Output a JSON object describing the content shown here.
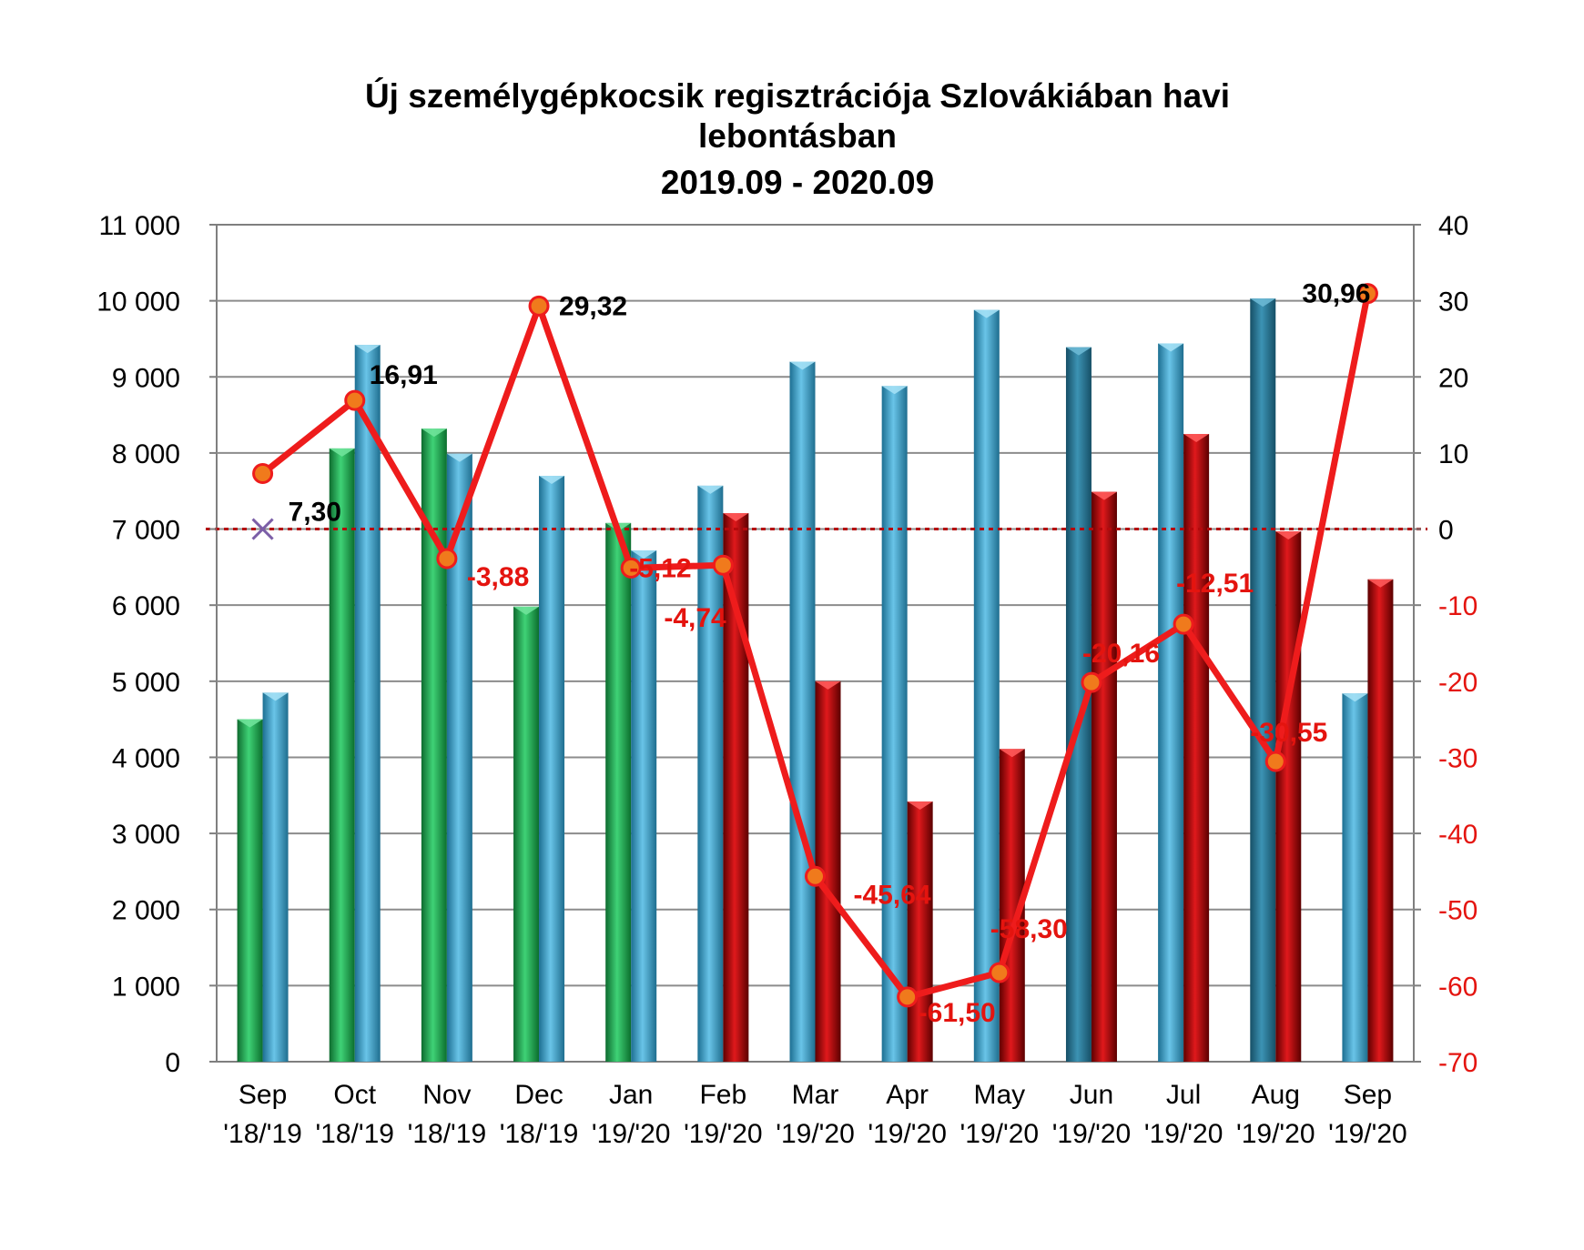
{
  "chart_data": {
    "type": "bar+line",
    "title": [
      "Új személygépkocsik regisztrációja Szlovákiában havi",
      "lebontásban",
      "2019.09 - 2020.09"
    ],
    "categories": [
      {
        "month": "Sep",
        "years": "'18/'19"
      },
      {
        "month": "Oct",
        "years": "'18/'19"
      },
      {
        "month": "Nov",
        "years": "'18/'19"
      },
      {
        "month": "Dec",
        "years": "'18/'19"
      },
      {
        "month": "Jan",
        "years": "'19/'20"
      },
      {
        "month": "Feb",
        "years": "'19/'20"
      },
      {
        "month": "Mar",
        "years": "'19/'20"
      },
      {
        "month": "Apr",
        "years": "'19/'20"
      },
      {
        "month": "May",
        "years": "'19/'20"
      },
      {
        "month": "Jun",
        "years": "'19/'20"
      },
      {
        "month": "Jul",
        "years": "'19/'20"
      },
      {
        "month": "Aug",
        "years": "'19/'20"
      },
      {
        "month": "Sep",
        "years": "'19/'20"
      }
    ],
    "bars": [
      {
        "prev": 4500,
        "curr": 4850,
        "prev_color": "green",
        "curr_color": "blue"
      },
      {
        "prev": 8060,
        "curr": 9420,
        "prev_color": "green",
        "curr_color": "blue"
      },
      {
        "prev": 8320,
        "curr": 7990,
        "prev_color": "green",
        "curr_color": "blue"
      },
      {
        "prev": 5980,
        "curr": 7700,
        "prev_color": "green",
        "curr_color": "blue"
      },
      {
        "prev": 7080,
        "curr": 6720,
        "prev_color": "green",
        "curr_color": "blue"
      },
      {
        "prev": 7570,
        "curr": 7210,
        "prev_color": "blue",
        "curr_color": "red"
      },
      {
        "prev": 9200,
        "curr": 5000,
        "prev_color": "blue",
        "curr_color": "red"
      },
      {
        "prev": 8880,
        "curr": 3420,
        "prev_color": "blue",
        "curr_color": "red"
      },
      {
        "prev": 9880,
        "curr": 4110,
        "prev_color": "blue",
        "curr_color": "red"
      },
      {
        "prev": 9390,
        "curr": 7490,
        "prev_color": "darkblue",
        "curr_color": "red"
      },
      {
        "prev": 9440,
        "curr": 8250,
        "prev_color": "blue",
        "curr_color": "red"
      },
      {
        "prev": 10030,
        "curr": 6970,
        "prev_color": "darkblue",
        "curr_color": "red"
      },
      {
        "prev": 4840,
        "curr": 6340,
        "prev_color": "blue",
        "curr_color": "red"
      }
    ],
    "change_pct": [
      7.3,
      16.91,
      -3.88,
      29.32,
      -5.12,
      -4.74,
      -45.64,
      -61.5,
      -58.3,
      -20.16,
      -12.51,
      -30.55,
      30.96
    ],
    "change_labels": [
      "7,30",
      "16,91",
      "-3,88",
      "29,32",
      "-5,12",
      "-4,74",
      "-45,64",
      "-61,50",
      "-58,30",
      "-20,16",
      "-12,51",
      "-30,55",
      "30,96"
    ],
    "ylim_left": [
      0,
      11000
    ],
    "yticks_left": [
      "0",
      "1 000",
      "2 000",
      "3 000",
      "4 000",
      "5 000",
      "6 000",
      "7 000",
      "8 000",
      "9 000",
      "10 000",
      "11 000"
    ],
    "ylim_right": [
      -70,
      40
    ],
    "yticks_right": [
      "-70",
      "-60",
      "-50",
      "-40",
      "-30",
      "-20",
      "-10",
      "0",
      "10",
      "20",
      "30",
      "40"
    ],
    "grid": true,
    "colors": {
      "green": "#1fa84f",
      "blue": "#3d9ec6",
      "darkblue": "#2b7f9e",
      "red": "#b5090c",
      "line": "#ee1c1c",
      "marker": "#f07a1c",
      "positive_label": "#000000",
      "negative_label": "#e4140f",
      "zero_line": "#b5090c",
      "marker_first": "#7b5ea7"
    }
  }
}
